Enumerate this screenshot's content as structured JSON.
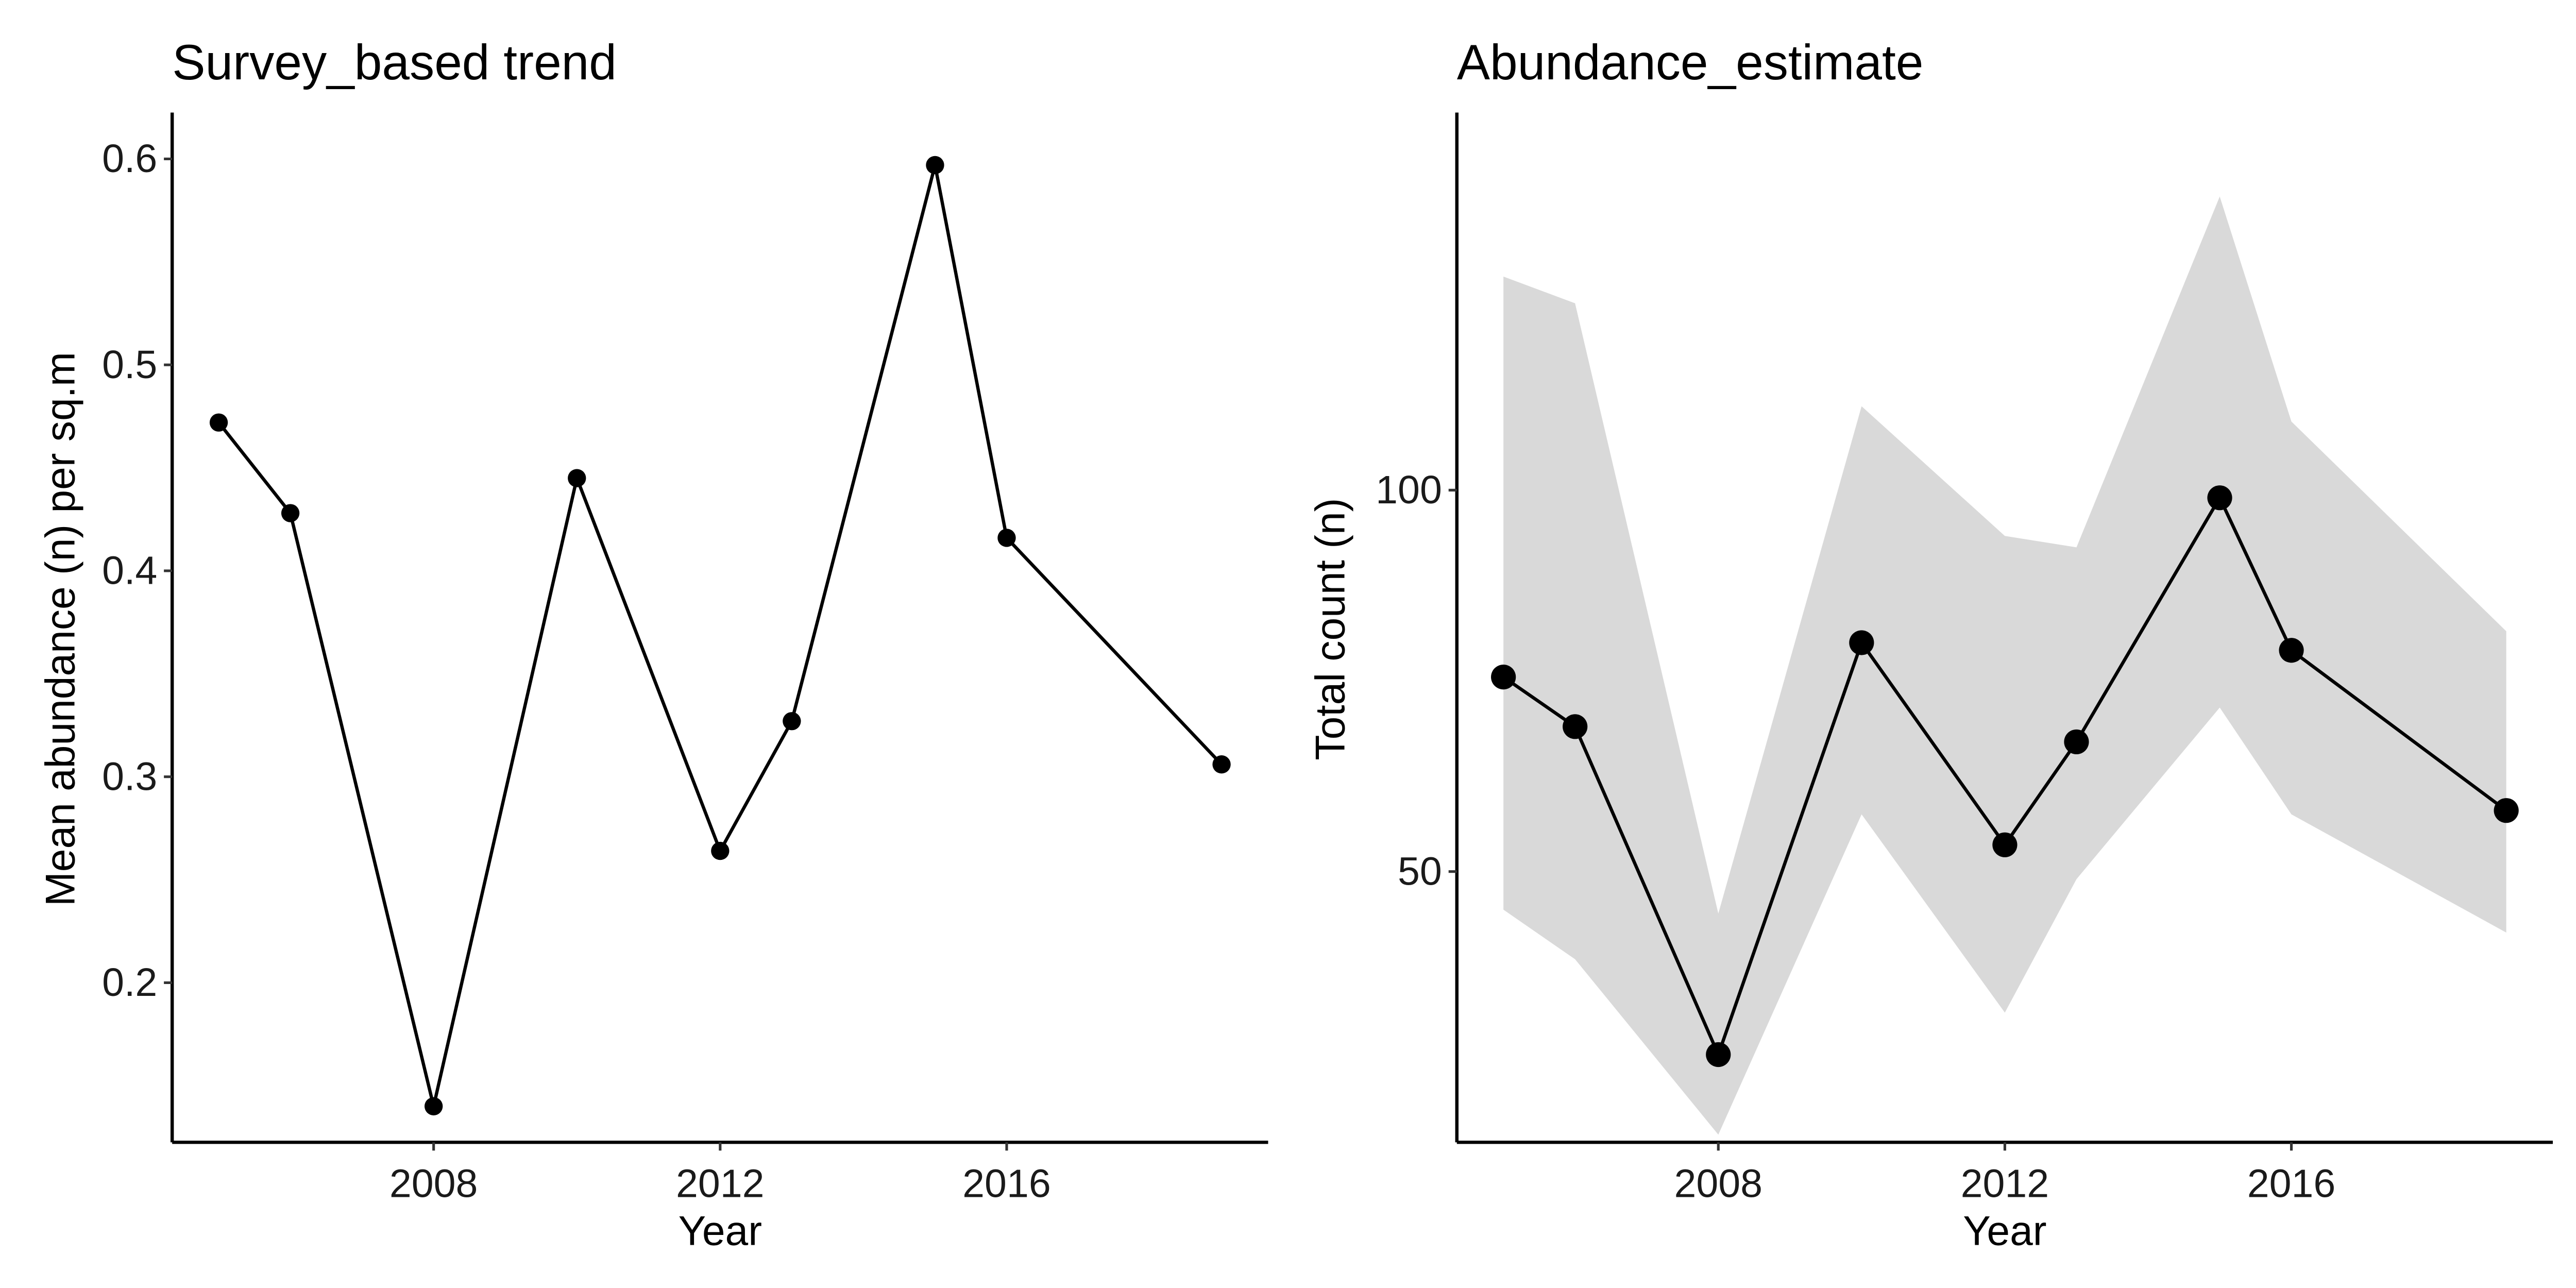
{
  "chart_data": [
    {
      "type": "line",
      "title": "Survey_based trend",
      "xlabel": "Year",
      "ylabel": "Mean abundance (n) per sq.m",
      "xlim": [
        2004.35,
        2019.65
      ],
      "ylim": [
        0.1225,
        0.6225
      ],
      "xticks": [
        2008,
        2012,
        2016
      ],
      "xtick_labels": [
        "2008",
        "2012",
        "2016"
      ],
      "yticks": [
        0.2,
        0.3,
        0.4,
        0.5,
        0.6
      ],
      "ytick_labels": [
        "0.2",
        "0.3",
        "0.4",
        "0.5",
        "0.6"
      ],
      "grid": false,
      "series": [
        {
          "x": [
            2005,
            2006,
            2008,
            2010,
            2012,
            2013,
            2015,
            2016,
            2019
          ],
          "y": [
            0.472,
            0.428,
            0.14,
            0.445,
            0.264,
            0.327,
            0.597,
            0.416,
            0.306
          ]
        }
      ],
      "point_size": "small"
    },
    {
      "type": "line",
      "title": "Abundance_estimate",
      "xlabel": "Year",
      "ylabel": "Total count (n)",
      "xlim": [
        2004.35,
        2019.65
      ],
      "ylim": [
        14.5,
        149.5
      ],
      "xticks": [
        2008,
        2012,
        2016
      ],
      "xtick_labels": [
        "2008",
        "2012",
        "2016"
      ],
      "yticks": [
        50,
        100
      ],
      "ytick_labels": [
        "50",
        "100"
      ],
      "grid": false,
      "series": [
        {
          "x": [
            2005,
            2006,
            2008,
            2010,
            2012,
            2013,
            2015,
            2016,
            2019
          ],
          "y": [
            75.5,
            69.0,
            26.0,
            80.0,
            53.5,
            67.0,
            99.0,
            79.0,
            58.0
          ],
          "lower": [
            45.0,
            38.5,
            15.5,
            57.5,
            31.5,
            49.0,
            71.5,
            57.5,
            42.0
          ],
          "upper": [
            128.0,
            124.5,
            44.5,
            111.0,
            94.0,
            92.5,
            138.5,
            109.0,
            81.5
          ]
        }
      ],
      "ribbon_color": "#d9d9d9",
      "point_size": "large"
    }
  ]
}
